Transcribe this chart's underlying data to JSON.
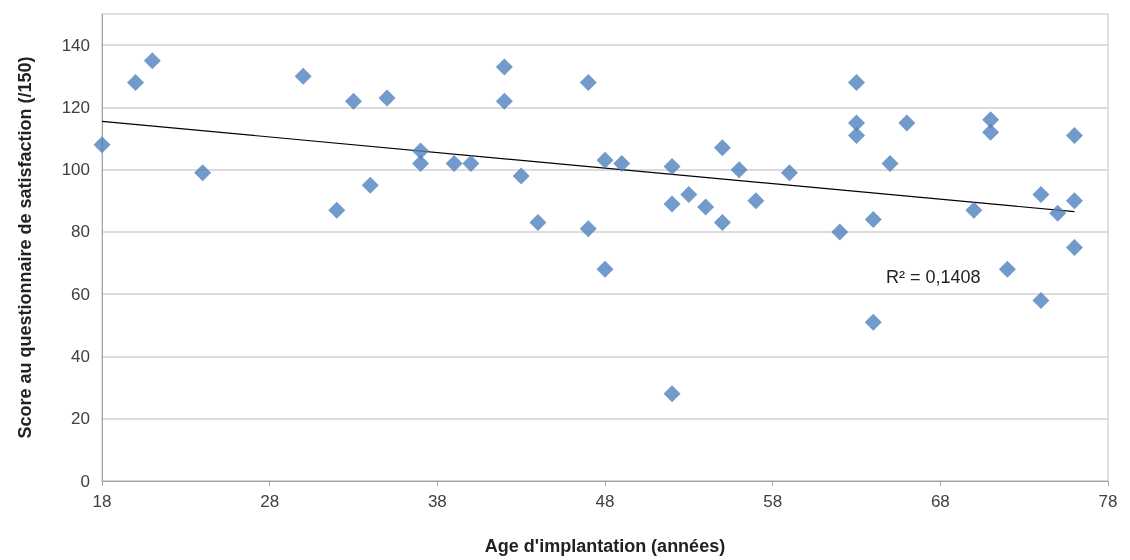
{
  "chart_data": {
    "type": "scatter",
    "xlabel": "Age d'implantation (années)",
    "ylabel": "Score au questionnaire de satisfaction (/150)",
    "xlim": [
      18,
      78
    ],
    "xticks": [
      18,
      28,
      38,
      48,
      58,
      68,
      78
    ],
    "ylim": [
      0,
      150
    ],
    "yticks": [
      0,
      20,
      40,
      60,
      80,
      100,
      120,
      140
    ],
    "grid": "y",
    "marker": "diamond",
    "annotations": [
      "R² = 0,1408"
    ],
    "series": [
      {
        "color": "#4f81bd",
        "x": [
          18,
          20,
          21,
          24,
          30,
          32,
          33,
          34,
          35,
          37,
          37,
          39,
          40,
          42,
          42,
          43,
          44,
          47,
          47,
          48,
          48,
          49,
          52,
          52,
          52,
          53,
          54,
          55,
          55,
          56,
          57,
          59,
          62,
          63,
          63,
          63,
          64,
          64,
          65,
          66,
          70,
          71,
          71,
          72,
          74,
          74,
          75,
          76,
          76,
          76
        ],
        "values": [
          108,
          128,
          135,
          99,
          130,
          87,
          122,
          95,
          123,
          106,
          102,
          102,
          102,
          133,
          122,
          98,
          83,
          128,
          81,
          103,
          68,
          102,
          101,
          89,
          28,
          92,
          88,
          107,
          83,
          100,
          90,
          99,
          80,
          128,
          115,
          111,
          84,
          51,
          102,
          115,
          87,
          116,
          112,
          68,
          92,
          58,
          86,
          111,
          90,
          75
        ]
      },
      {
        "type": "line",
        "color": "#000000",
        "line_style": "solid",
        "marker": "none",
        "x": [
          18,
          76
        ],
        "values": [
          115.5,
          86.5
        ]
      }
    ]
  }
}
